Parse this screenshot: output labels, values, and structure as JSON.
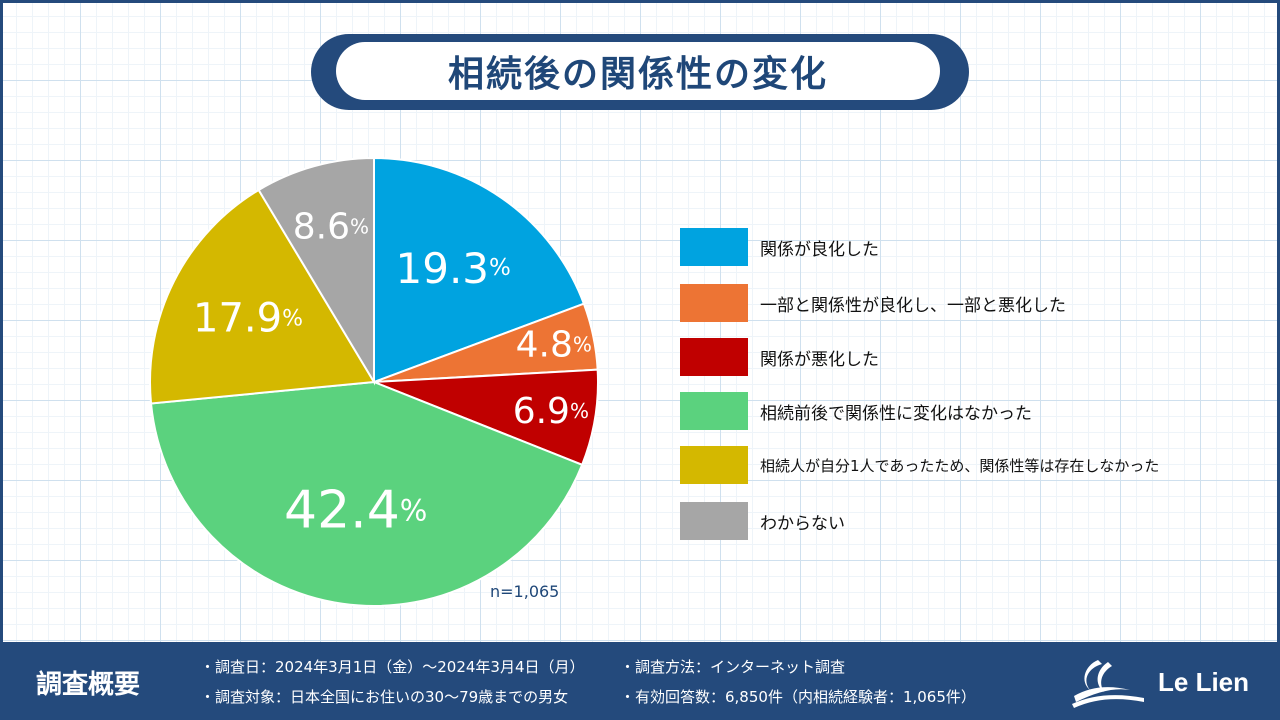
{
  "title": "相続後の関係性の変化",
  "chart_data": {
    "type": "pie",
    "title": "相続後の関係性の変化",
    "categories": [
      "関係が良化した",
      "一部と関係性が良化し、一部と悪化した",
      "関係が悪化した",
      "相続前後で関係性に変化はなかった",
      "相続人が自分1人であったため、関係性等は存在しなかった",
      "わからない"
    ],
    "values": [
      19.3,
      4.8,
      6.9,
      42.4,
      17.9,
      8.6
    ],
    "labels": [
      "19.3",
      "4.8",
      "6.9",
      "42.4",
      "17.9",
      "8.6"
    ],
    "unit": "%",
    "colors": [
      "#00a3e0",
      "#ed7434",
      "#c00000",
      "#5bd27e",
      "#d4b800",
      "#a6a6a6"
    ],
    "sample_size": "n=1,065"
  },
  "footer": {
    "heading": "調査概要",
    "lines": [
      "・調査日：2024年3月1日（金）～2024年3月4日（月）",
      "・調査対象：日本全国にお住いの30～79歳までの男女",
      "・調査方法：インターネット調査",
      "・有効回答数：6,850件（内相続経験者：1,065件）"
    ],
    "logo_text": "Le Lien"
  }
}
